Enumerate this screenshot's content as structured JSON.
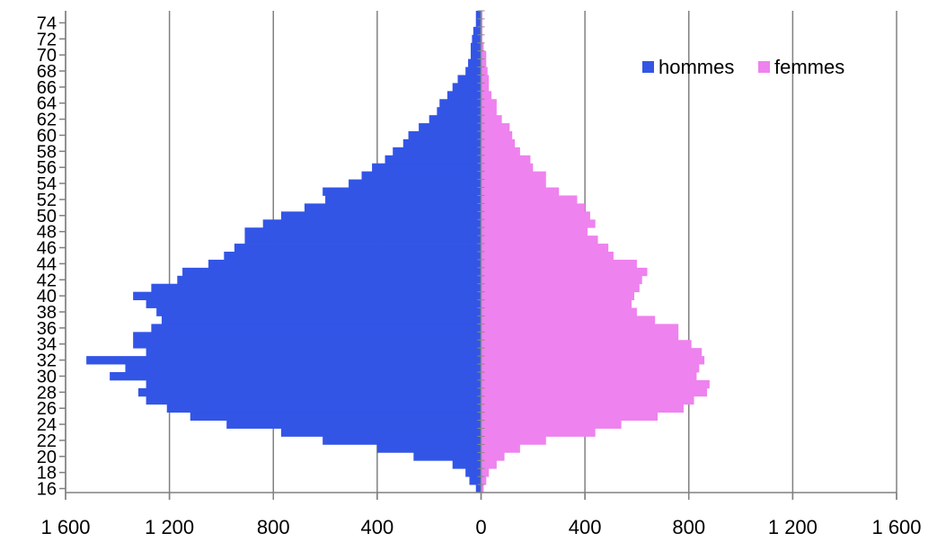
{
  "chart_data": {
    "type": "bar",
    "orientation": "horizontal",
    "layout": "population-pyramid",
    "title": "",
    "xlabel": "",
    "ylabel": "",
    "xlim": [
      -1600,
      1600
    ],
    "x_ticks": [
      -1600,
      -1200,
      -800,
      -400,
      0,
      400,
      800,
      1200,
      1600
    ],
    "x_tick_labels": [
      "1 600",
      "1 200",
      "800",
      "400",
      "0",
      "400",
      "800",
      "1 200",
      "1 600"
    ],
    "y_min_age": 16,
    "y_max_age": 75,
    "y_tick_labels": [
      "16",
      "18",
      "20",
      "22",
      "24",
      "26",
      "28",
      "30",
      "32",
      "34",
      "36",
      "38",
      "40",
      "42",
      "44",
      "46",
      "48",
      "50",
      "52",
      "54",
      "56",
      "58",
      "60",
      "62",
      "64",
      "66",
      "68",
      "70",
      "72",
      "74"
    ],
    "grid": "vertical",
    "legend_position": "top-right",
    "categories": [
      16,
      17,
      18,
      19,
      20,
      21,
      22,
      23,
      24,
      25,
      26,
      27,
      28,
      29,
      30,
      31,
      32,
      33,
      34,
      35,
      36,
      37,
      38,
      39,
      40,
      41,
      42,
      43,
      44,
      45,
      46,
      47,
      48,
      49,
      50,
      51,
      52,
      53,
      54,
      55,
      56,
      57,
      58,
      59,
      60,
      61,
      62,
      63,
      64,
      65,
      66,
      67,
      68,
      69,
      70,
      71,
      72,
      73,
      74,
      75
    ],
    "series": [
      {
        "name": "hommes",
        "color": "#3355e6",
        "values": [
          20,
          45,
          60,
          110,
          260,
          400,
          610,
          770,
          980,
          1120,
          1210,
          1290,
          1320,
          1290,
          1430,
          1370,
          1520,
          1290,
          1340,
          1340,
          1270,
          1230,
          1250,
          1290,
          1340,
          1270,
          1170,
          1150,
          1050,
          990,
          950,
          910,
          910,
          840,
          770,
          680,
          600,
          610,
          510,
          460,
          420,
          370,
          340,
          300,
          280,
          240,
          200,
          170,
          160,
          130,
          110,
          90,
          60,
          50,
          40,
          40,
          35,
          30,
          20,
          20
        ]
      },
      {
        "name": "femmes",
        "color": "#ee82ee",
        "values": [
          10,
          20,
          30,
          60,
          90,
          150,
          250,
          440,
          540,
          680,
          780,
          820,
          870,
          880,
          830,
          840,
          860,
          850,
          810,
          760,
          760,
          670,
          600,
          580,
          590,
          610,
          620,
          640,
          600,
          510,
          490,
          450,
          410,
          440,
          420,
          400,
          370,
          300,
          250,
          250,
          200,
          190,
          150,
          130,
          120,
          110,
          80,
          60,
          60,
          40,
          30,
          30,
          25,
          20,
          20,
          10,
          5,
          5,
          5,
          5
        ]
      }
    ]
  }
}
